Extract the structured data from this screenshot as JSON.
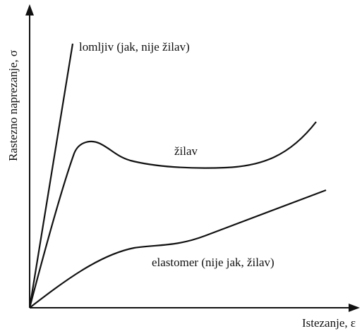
{
  "axes": {
    "y_label": "Rastezno naprezanje, σ",
    "x_label": "Istezanje, ε"
  },
  "curves": [
    {
      "label": "lomljiv (jak, nije žilav)"
    },
    {
      "label": "žilav"
    },
    {
      "label": "elastomer (nije jak, žilav)"
    }
  ]
}
